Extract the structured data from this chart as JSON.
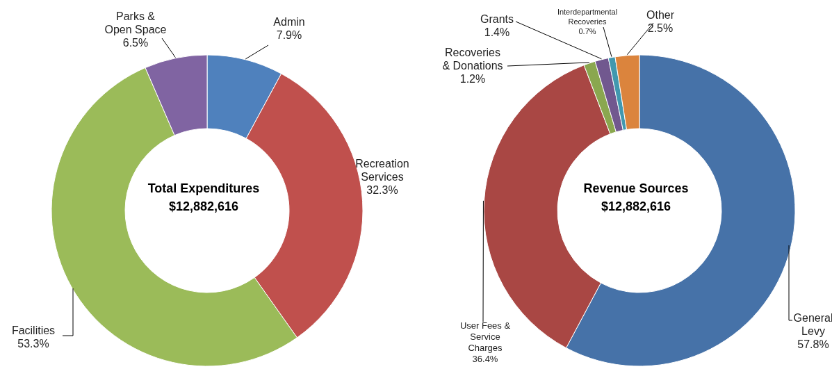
{
  "chart_data": [
    {
      "type": "donut",
      "title": "Total Expenditures",
      "subtitle": "$12,882,616",
      "categories": [
        "Admin",
        "Recreation Services",
        "Facilities",
        "Parks & Open Space"
      ],
      "values": [
        7.9,
        32.3,
        53.3,
        6.5
      ],
      "value_labels": [
        "7.9%",
        "32.3%",
        "53.3%",
        "6.5%"
      ],
      "colors": [
        "#4f81bd",
        "#c0504d",
        "#9bbb59",
        "#8064a2"
      ]
    },
    {
      "type": "donut",
      "title": "Revenue Sources",
      "subtitle": "$12,882,616",
      "categories": [
        "General Levy",
        "User Fees & Service Charges",
        "Recoveries & Donations",
        "Grants",
        "Interdepartmental Recoveries",
        "Other"
      ],
      "values": [
        57.8,
        36.4,
        1.2,
        1.4,
        0.7,
        2.5
      ],
      "value_labels": [
        "57.8%",
        "36.4%",
        "1.2%",
        "1.4%",
        "0.7%",
        "2.5%"
      ],
      "colors": [
        "#4672a8",
        "#a94744",
        "#8aa74f",
        "#71588f",
        "#4198af",
        "#db843d"
      ]
    }
  ]
}
